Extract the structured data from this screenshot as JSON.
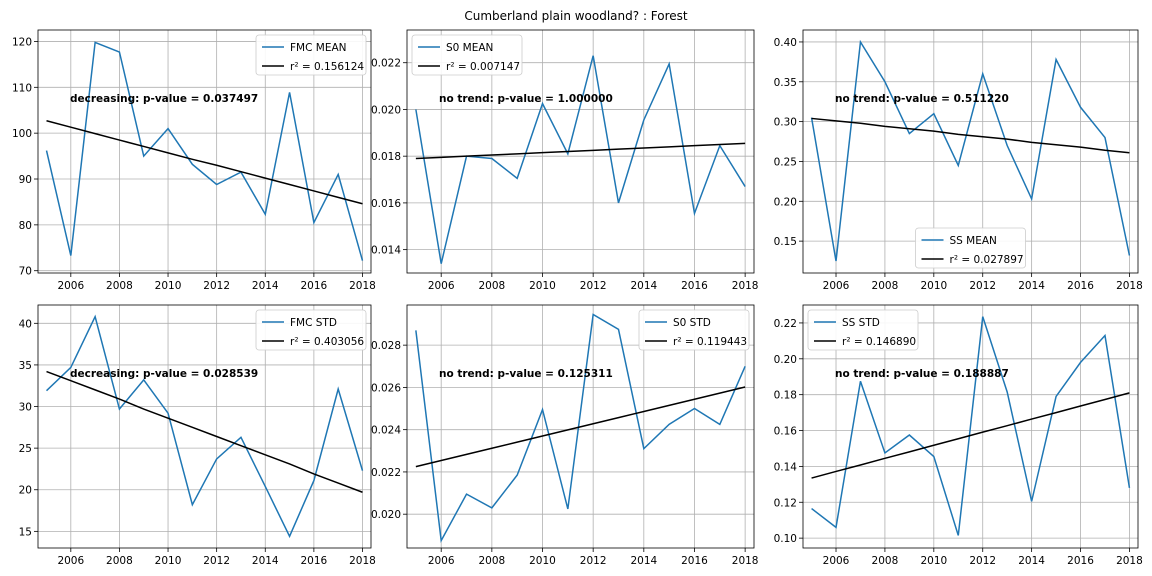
{
  "figure": {
    "title": "Cumberland plain woodland? : Forest",
    "colors": {
      "series": "#1f77b4",
      "trend": "#000000",
      "grid": "#b0b0b0"
    }
  },
  "chart_data": [
    {
      "type": "line",
      "x": [
        2005,
        2006,
        2007,
        2008,
        2009,
        2010,
        2011,
        2012,
        2013,
        2014,
        2015,
        2016,
        2017,
        2018
      ],
      "series": [
        {
          "name": "FMC MEAN",
          "values": [
            96.2,
            73.3,
            119.8,
            117.7,
            95.0,
            101.0,
            93.2,
            88.8,
            91.5,
            82.3,
            108.9,
            80.5,
            91.0,
            72.2
          ]
        },
        {
          "name": "r² = 0.156124",
          "values": [
            102.7,
            101.3,
            99.9,
            98.5,
            97.1,
            95.7,
            94.3,
            93.0,
            91.6,
            90.2,
            88.8,
            87.4,
            86.0,
            84.6
          ]
        }
      ],
      "annotation": "decreasing: p-value = 0.037497",
      "xticks": [
        "2006",
        "2008",
        "2010",
        "2012",
        "2014",
        "2016",
        "2018"
      ],
      "yticks": [
        "70",
        "80",
        "90",
        "100",
        "110",
        "120"
      ],
      "ylim": [
        69.5,
        122.5
      ],
      "xlim": [
        2004.65,
        2018.35
      ],
      "grid": true,
      "legend": "top-right"
    },
    {
      "type": "line",
      "x": [
        2005,
        2006,
        2007,
        2008,
        2009,
        2010,
        2011,
        2012,
        2013,
        2014,
        2015,
        2016,
        2017,
        2018
      ],
      "series": [
        {
          "name": "S0 MEAN",
          "values": [
            0.02,
            0.0134,
            0.018,
            0.0179,
            0.01705,
            0.02025,
            0.0181,
            0.0223,
            0.016,
            0.01955,
            0.02195,
            0.01555,
            0.01845,
            0.0167
          ]
        },
        {
          "name": "r² = 0.007147",
          "values": [
            0.0179,
            0.01795,
            0.018,
            0.01805,
            0.0181,
            0.01815,
            0.0182,
            0.01825,
            0.0183,
            0.01835,
            0.0184,
            0.01845,
            0.0185,
            0.01855
          ]
        }
      ],
      "annotation": "no trend: p-value = 1.000000",
      "xticks": [
        "2006",
        "2008",
        "2010",
        "2012",
        "2014",
        "2016",
        "2018"
      ],
      "yticks": [
        "0.014",
        "0.016",
        "0.018",
        "0.020",
        "0.022"
      ],
      "ylim": [
        0.013,
        0.0234
      ],
      "xlim": [
        2004.65,
        2018.35
      ],
      "grid": true,
      "legend": "top-left"
    },
    {
      "type": "line",
      "x": [
        2005,
        2006,
        2007,
        2008,
        2009,
        2010,
        2011,
        2012,
        2013,
        2014,
        2015,
        2016,
        2017,
        2018
      ],
      "series": [
        {
          "name": "SS MEAN",
          "values": [
            0.305,
            0.125,
            0.4,
            0.35,
            0.285,
            0.31,
            0.245,
            0.36,
            0.27,
            0.203,
            0.378,
            0.318,
            0.28,
            0.132
          ]
        },
        {
          "name": "r² = 0.027897",
          "values": [
            0.304,
            0.301,
            0.298,
            0.294,
            0.291,
            0.288,
            0.284,
            0.281,
            0.278,
            0.274,
            0.271,
            0.268,
            0.264,
            0.261
          ]
        }
      ],
      "annotation": "no trend: p-value = 0.511220",
      "xticks": [
        "2006",
        "2008",
        "2010",
        "2012",
        "2014",
        "2016",
        "2018"
      ],
      "yticks": [
        "0.15",
        "0.20",
        "0.25",
        "0.30",
        "0.35",
        "0.40"
      ],
      "ylim": [
        0.11,
        0.415
      ],
      "xlim": [
        2004.65,
        2018.35
      ],
      "grid": true,
      "legend": "bottom-center"
    },
    {
      "type": "line",
      "x": [
        2005,
        2006,
        2007,
        2008,
        2009,
        2010,
        2011,
        2012,
        2013,
        2014,
        2015,
        2016,
        2017,
        2018
      ],
      "series": [
        {
          "name": "FMC STD",
          "values": [
            31.9,
            34.7,
            40.8,
            29.7,
            33.2,
            29.2,
            18.2,
            23.7,
            26.3,
            20.4,
            14.4,
            21.1,
            32.1,
            22.3
          ]
        },
        {
          "name": "r² = 0.403056",
          "values": [
            34.2,
            33.1,
            32.0,
            30.9,
            29.7,
            28.6,
            27.5,
            26.4,
            25.3,
            24.2,
            23.1,
            21.9,
            20.8,
            19.7
          ]
        }
      ],
      "annotation": "decreasing: p-value = 0.028539",
      "xticks": [
        "2006",
        "2008",
        "2010",
        "2012",
        "2014",
        "2016",
        "2018"
      ],
      "yticks": [
        "15",
        "20",
        "25",
        "30",
        "35",
        "40"
      ],
      "ylim": [
        13.0,
        42.2
      ],
      "xlim": [
        2004.65,
        2018.35
      ],
      "grid": true,
      "legend": "top-right"
    },
    {
      "type": "line",
      "x": [
        2005,
        2006,
        2007,
        2008,
        2009,
        2010,
        2011,
        2012,
        2013,
        2014,
        2015,
        2016,
        2017,
        2018
      ],
      "series": [
        {
          "name": "S0 STD",
          "values": [
            0.0287,
            0.01875,
            0.02095,
            0.0203,
            0.02185,
            0.02495,
            0.02025,
            0.02945,
            0.02875,
            0.0231,
            0.02425,
            0.025,
            0.02425,
            0.027
          ]
        },
        {
          "name": "r² = 0.119443",
          "values": [
            0.02225,
            0.02254,
            0.02283,
            0.02312,
            0.02341,
            0.0237,
            0.02399,
            0.02428,
            0.02457,
            0.02486,
            0.02515,
            0.02544,
            0.02573,
            0.02602
          ]
        }
      ],
      "annotation": "no trend: p-value = 0.125311",
      "xticks": [
        "2006",
        "2008",
        "2010",
        "2012",
        "2014",
        "2016",
        "2018"
      ],
      "yticks": [
        "0.020",
        "0.022",
        "0.024",
        "0.026",
        "0.028"
      ],
      "ylim": [
        0.0184,
        0.0299
      ],
      "xlim": [
        2004.65,
        2018.35
      ],
      "grid": true,
      "legend": "top-right"
    },
    {
      "type": "line",
      "x": [
        2005,
        2006,
        2007,
        2008,
        2009,
        2010,
        2011,
        2012,
        2013,
        2014,
        2015,
        2016,
        2017,
        2018
      ],
      "series": [
        {
          "name": "SS STD",
          "values": [
            0.1165,
            0.106,
            0.1875,
            0.1475,
            0.1575,
            0.1455,
            0.1015,
            0.2235,
            0.1815,
            0.1205,
            0.179,
            0.198,
            0.213,
            0.128
          ]
        },
        {
          "name": "r² = 0.146890",
          "values": [
            0.1335,
            0.1372,
            0.1408,
            0.1445,
            0.1481,
            0.1518,
            0.1554,
            0.1591,
            0.1627,
            0.1664,
            0.17,
            0.1737,
            0.1773,
            0.181
          ]
        }
      ],
      "annotation": "no trend: p-value = 0.188887",
      "xticks": [
        "2006",
        "2008",
        "2010",
        "2012",
        "2014",
        "2016",
        "2018"
      ],
      "yticks": [
        "0.10",
        "0.12",
        "0.14",
        "0.16",
        "0.18",
        "0.20",
        "0.22"
      ],
      "ylim": [
        0.0945,
        0.23
      ],
      "xlim": [
        2004.65,
        2018.35
      ],
      "grid": true,
      "legend": "top-left"
    }
  ]
}
